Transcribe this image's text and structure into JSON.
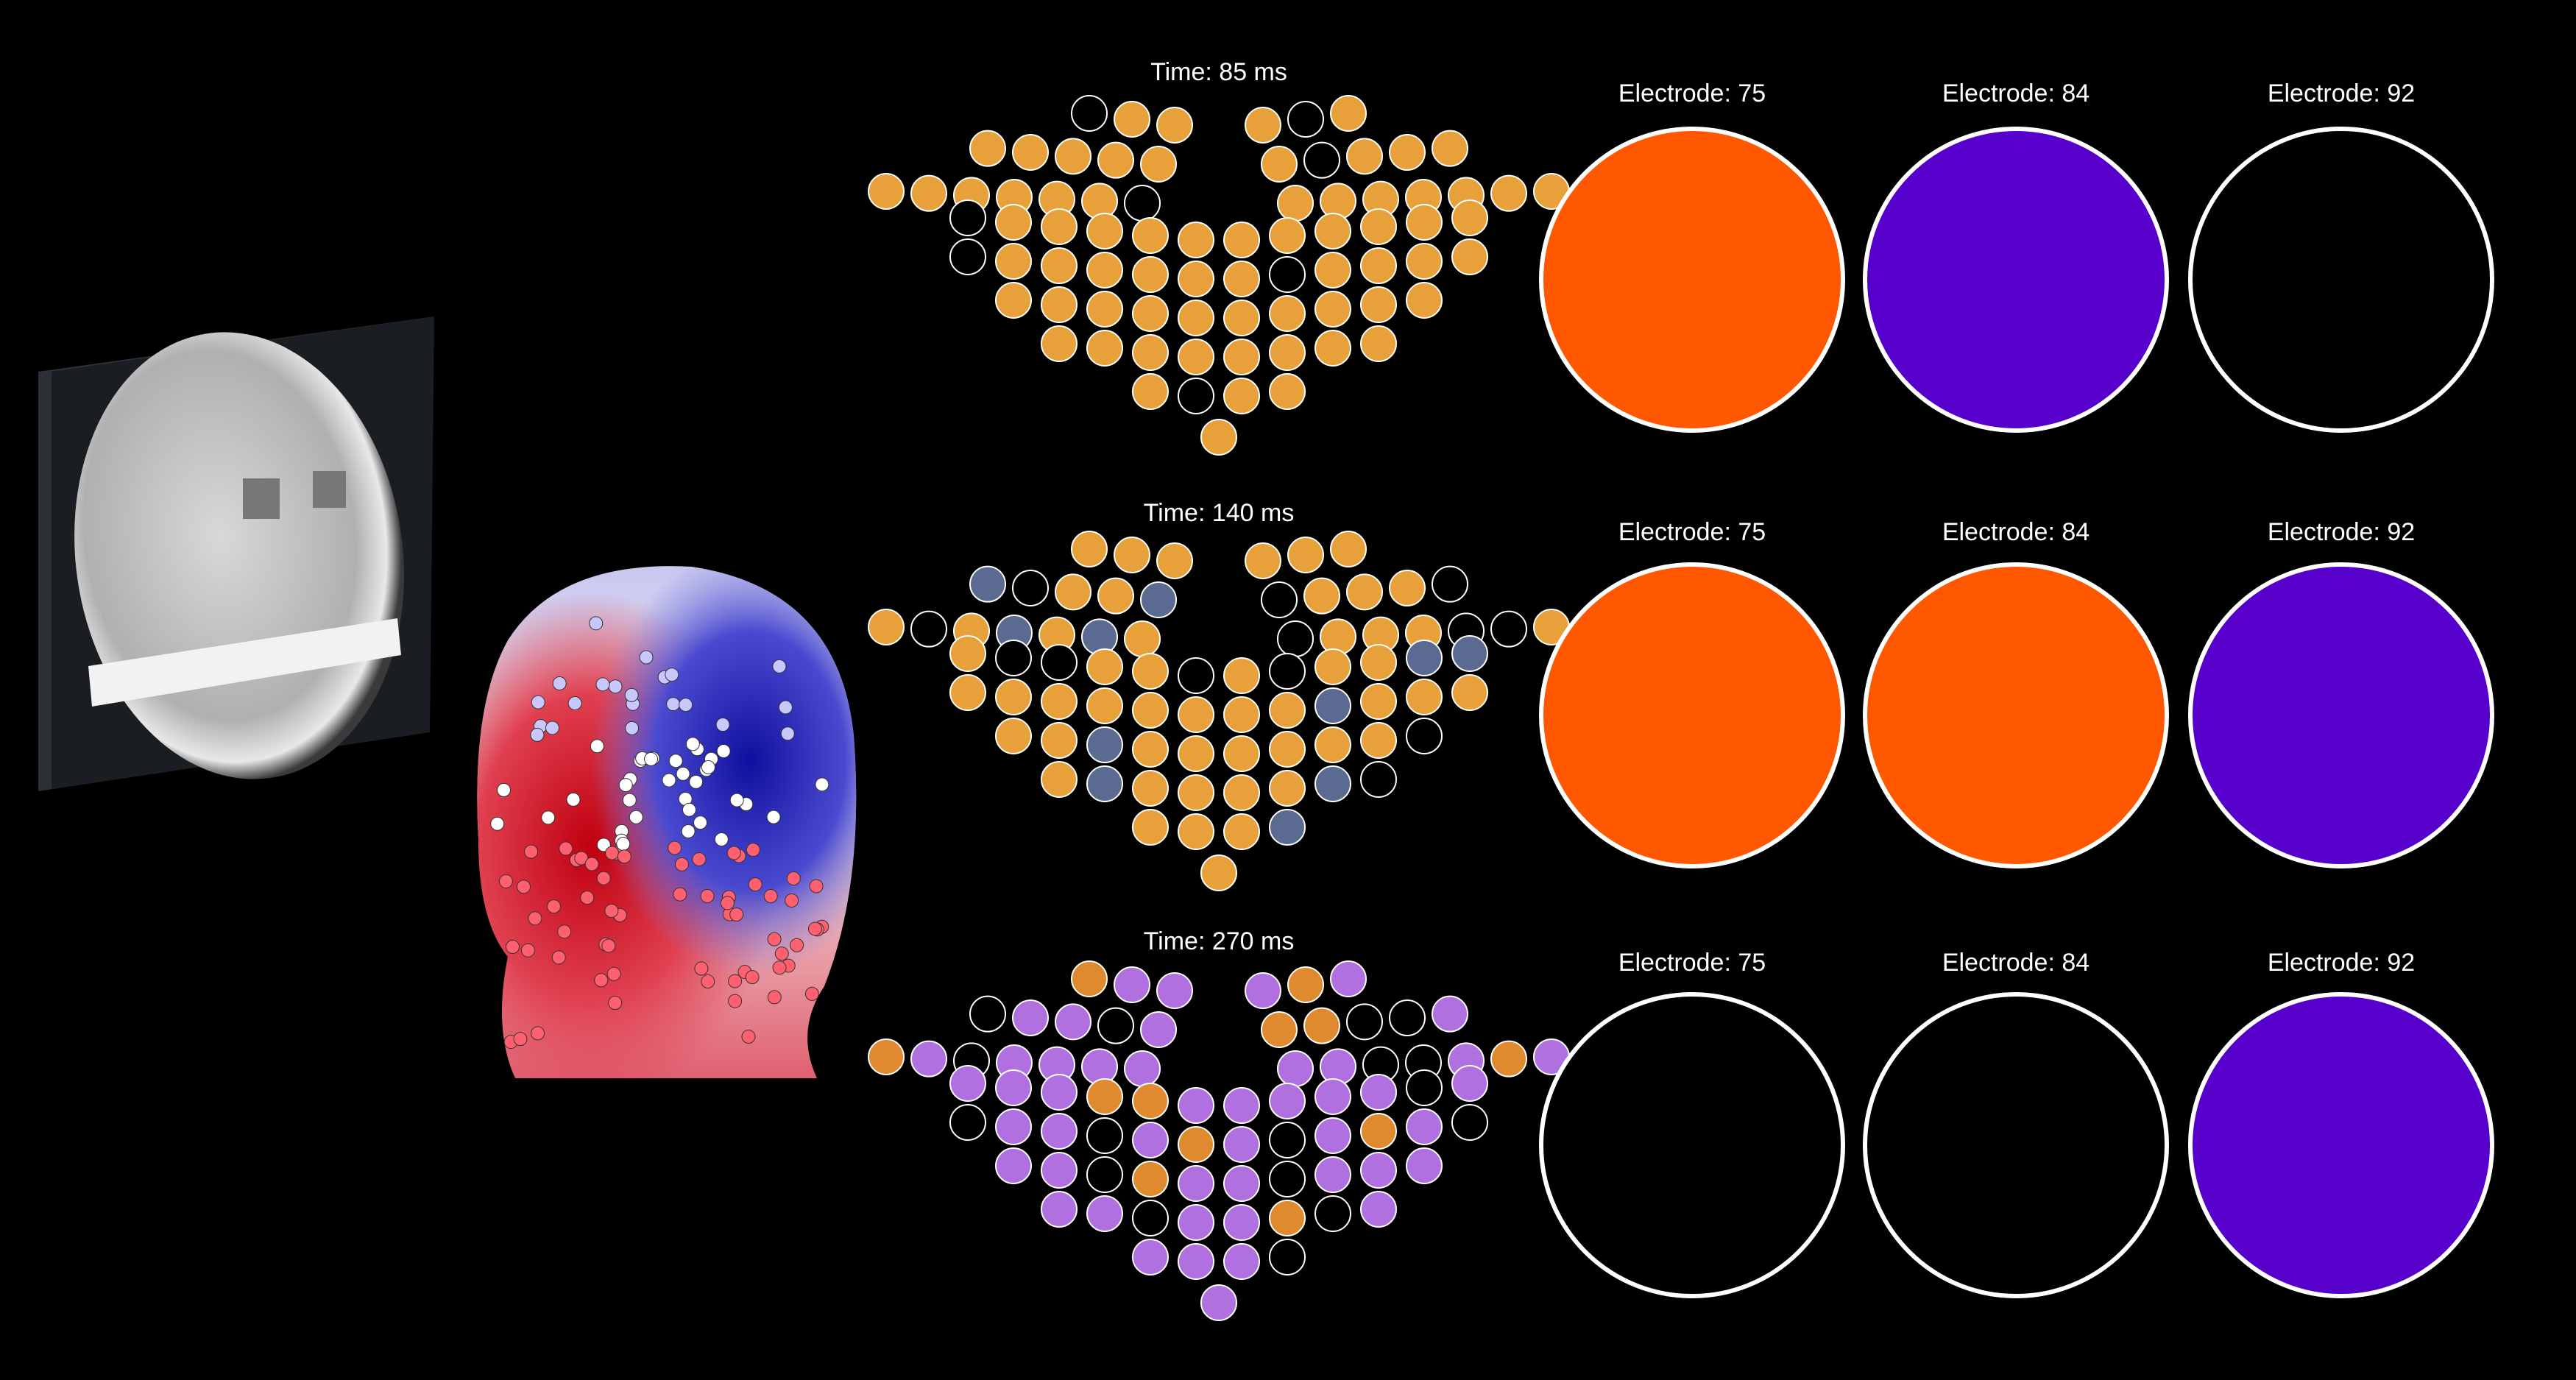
{
  "rows": [
    {
      "time": "Time: 85 ms",
      "electrodes": [
        "Electrode: 75",
        "Electrode: 84",
        "Electrode: 92"
      ]
    },
    {
      "time": "Time: 140 ms",
      "electrodes": [
        "Electrode: 75",
        "Electrode: 84",
        "Electrode: 92"
      ]
    },
    {
      "time": "Time: 270 ms",
      "electrodes": [
        "Electrode: 75",
        "Electrode: 84",
        "Electrode: 92"
      ]
    }
  ]
}
